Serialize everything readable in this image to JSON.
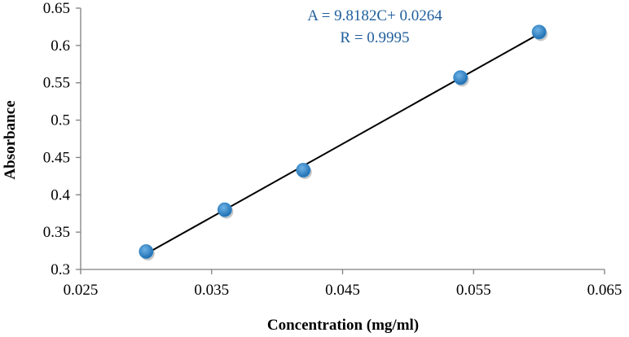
{
  "chart_data": {
    "type": "scatter",
    "title": "",
    "xlabel": "Concentration (mg/ml)",
    "ylabel": "Absorbance",
    "xlim": [
      0.025,
      0.065
    ],
    "ylim": [
      0.3,
      0.65
    ],
    "xticks": [
      0.025,
      0.035,
      0.045,
      0.055,
      0.065
    ],
    "xtick_labels": [
      "0.025",
      "0.035",
      "0.045",
      "0.055",
      "0.065"
    ],
    "yticks": [
      0.3,
      0.35,
      0.4,
      0.45,
      0.5,
      0.55,
      0.6,
      0.65
    ],
    "ytick_labels": [
      "0.3",
      "0.35",
      "0.4",
      "0.45",
      "0.5",
      "0.55",
      "0.6",
      "0.65"
    ],
    "grid": false,
    "series": [
      {
        "name": "Absorbance",
        "x": [
          0.03,
          0.036,
          0.042,
          0.054,
          0.06
        ],
        "y": [
          0.324,
          0.38,
          0.433,
          0.557,
          0.618
        ],
        "color": "#2e86c8"
      }
    ],
    "trendline": {
      "slope": 9.8182,
      "intercept": 0.0264,
      "x_range": [
        0.03,
        0.06
      ],
      "color": "#000000"
    },
    "annotations": {
      "equation": "A = 9.8182C+ 0.0264",
      "r_value": "R = 0.9995",
      "color": "#1f5e9c"
    }
  }
}
